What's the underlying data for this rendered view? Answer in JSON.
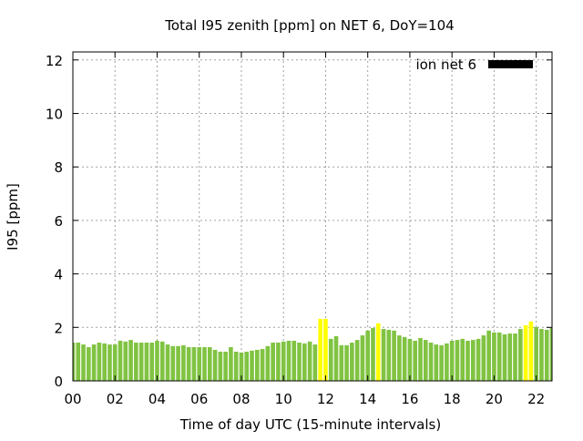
{
  "chart_data": {
    "type": "bar",
    "title": "Total I95 zenith [ppm] on NET 6, DoY=104",
    "xlabel": "Time of day UTC (15-minute intervals)",
    "ylabel": "I95 [ppm]",
    "xlim": [
      0,
      22.75
    ],
    "ylim": [
      0,
      12.3
    ],
    "x_step_hours": 0.25,
    "xticks": [
      "00",
      "02",
      "04",
      "06",
      "08",
      "10",
      "12",
      "14",
      "16",
      "18",
      "20",
      "22"
    ],
    "yticks": [
      "0",
      "2",
      "4",
      "6",
      "8",
      "10",
      "12"
    ],
    "grid": true,
    "legend": {
      "label": "ion net 6",
      "placement": "top-right",
      "color": "#000000"
    },
    "colors": {
      "normal": "#80c342",
      "highlight": "#ffff00"
    },
    "values": [
      1.43,
      1.43,
      1.36,
      1.26,
      1.36,
      1.43,
      1.4,
      1.36,
      1.36,
      1.5,
      1.47,
      1.53,
      1.43,
      1.43,
      1.43,
      1.43,
      1.5,
      1.47,
      1.36,
      1.3,
      1.3,
      1.33,
      1.26,
      1.26,
      1.26,
      1.26,
      1.26,
      1.16,
      1.09,
      1.09,
      1.26,
      1.09,
      1.06,
      1.09,
      1.13,
      1.16,
      1.19,
      1.3,
      1.43,
      1.43,
      1.47,
      1.5,
      1.5,
      1.43,
      1.4,
      1.47,
      1.36,
      2.32,
      2.32,
      1.57,
      1.67,
      1.33,
      1.33,
      1.43,
      1.53,
      1.7,
      1.88,
      1.98,
      2.15,
      1.94,
      1.91,
      1.88,
      1.7,
      1.64,
      1.57,
      1.5,
      1.6,
      1.53,
      1.43,
      1.36,
      1.33,
      1.4,
      1.5,
      1.53,
      1.57,
      1.5,
      1.53,
      1.57,
      1.7,
      1.88,
      1.81,
      1.81,
      1.74,
      1.77,
      1.77,
      1.94,
      2.08,
      2.22,
      2.01,
      1.94,
      1.91,
      1.98
    ],
    "highlighted_indices": [
      47,
      48,
      58,
      86,
      87
    ]
  }
}
